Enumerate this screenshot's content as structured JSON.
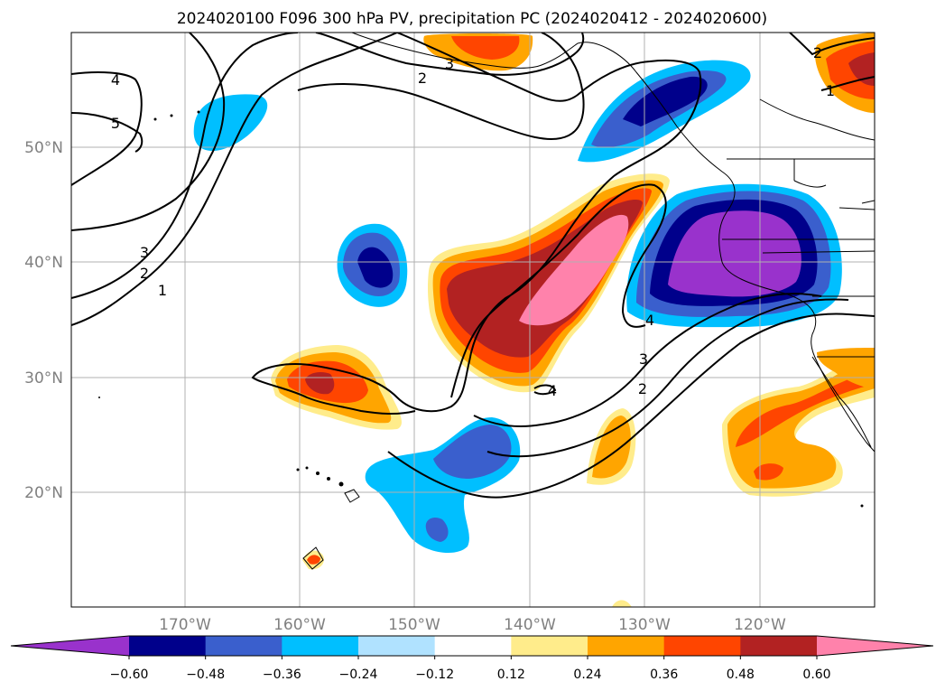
{
  "title": "2024020100 F096 300 hPa PV, precipitation PC (2024020412 - 2024020600)",
  "map": {
    "lat_labels": [
      "50°N",
      "40°N",
      "30°N",
      "20°N"
    ],
    "lon_labels": [
      "170°W",
      "160°W",
      "150°W",
      "140°W",
      "130°W",
      "120°W"
    ],
    "lat_values": [
      50,
      40,
      30,
      20
    ],
    "lon_values": [
      -170,
      -160,
      -150,
      -140,
      -130,
      -120
    ],
    "gridlines": true
  },
  "pv_contour_labels": [
    "4",
    "5",
    "3",
    "2",
    "1",
    "2",
    "3",
    "4",
    "4",
    "3",
    "2",
    "2",
    "1"
  ],
  "colorbar": {
    "ticks": [
      "−0.60",
      "−0.48",
      "−0.36",
      "−0.24",
      "−0.12",
      "0.12",
      "0.24",
      "0.36",
      "0.48",
      "0.60"
    ],
    "levels": [
      -0.6,
      -0.48,
      -0.36,
      -0.24,
      -0.12,
      0.12,
      0.24,
      0.36,
      0.48,
      0.6
    ],
    "colors": [
      "#9932cc",
      "#00008b",
      "#3a5fcd",
      "#00bfff",
      "#b0e2ff",
      "#ffffff",
      "#ffec8b",
      "#ffa500",
      "#ff4500",
      "#b22222",
      "#ff82ab"
    ],
    "extend": "both"
  }
}
